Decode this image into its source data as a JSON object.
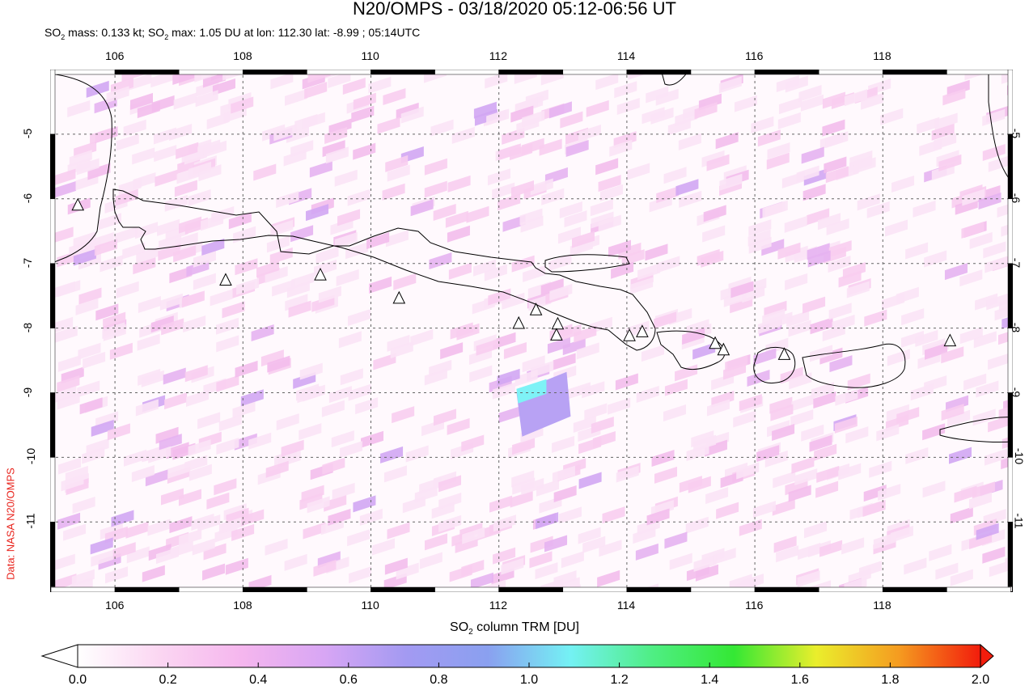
{
  "header": {
    "title": "N20/OMPS - 03/18/2020 05:12-06:56 UT",
    "subtitle_parts": [
      "SO",
      "2",
      " mass: 0.133 kt; SO",
      "2",
      " max: 1.05 DU at lon: 112.30 lat: -8.99 ; 05:14UTC"
    ]
  },
  "credit": "Data: NASA N20/OMPS",
  "map": {
    "lon_range": [
      105,
      120
    ],
    "lat_range": [
      -12,
      -4
    ],
    "lon_ticks": [
      "106",
      "108",
      "110",
      "112",
      "114",
      "116",
      "118"
    ],
    "lat_ticks": [
      "-5",
      "-6",
      "-7",
      "-8",
      "-9",
      "-10",
      "-11"
    ],
    "volcanoes": [
      {
        "lon": 105.42,
        "lat": -6.1
      },
      {
        "lon": 107.73,
        "lat": -7.26
      },
      {
        "lon": 109.21,
        "lat": -7.18
      },
      {
        "lon": 110.44,
        "lat": -7.54
      },
      {
        "lon": 112.31,
        "lat": -7.93
      },
      {
        "lon": 112.58,
        "lat": -7.72
      },
      {
        "lon": 112.92,
        "lat": -7.94
      },
      {
        "lon": 112.9,
        "lat": -8.11
      },
      {
        "lon": 114.04,
        "lat": -8.12
      },
      {
        "lon": 114.24,
        "lat": -8.06
      },
      {
        "lon": 115.38,
        "lat": -8.24
      },
      {
        "lon": 115.51,
        "lat": -8.34
      },
      {
        "lon": 116.46,
        "lat": -8.41
      },
      {
        "lon": 119.05,
        "lat": -8.2
      }
    ],
    "so2_max": {
      "lon": 112.3,
      "lat": -8.99,
      "value_du": 1.05
    }
  },
  "colorbar": {
    "label_parts": [
      "SO",
      "2",
      " column TRM [DU]"
    ],
    "ticks": [
      "0.0",
      "0.2",
      "0.4",
      "0.6",
      "0.8",
      "1.0",
      "1.2",
      "1.4",
      "1.6",
      "1.8",
      "2.0"
    ],
    "range": [
      0,
      2
    ],
    "colors": [
      "#ffffff",
      "#fbd6f2",
      "#f5b6ee",
      "#d8a6f4",
      "#a39af2",
      "#8aa0f0",
      "#74f1f4",
      "#4fee84",
      "#34e834",
      "#eaee2c",
      "#f59c20",
      "#f21c0c"
    ]
  }
}
